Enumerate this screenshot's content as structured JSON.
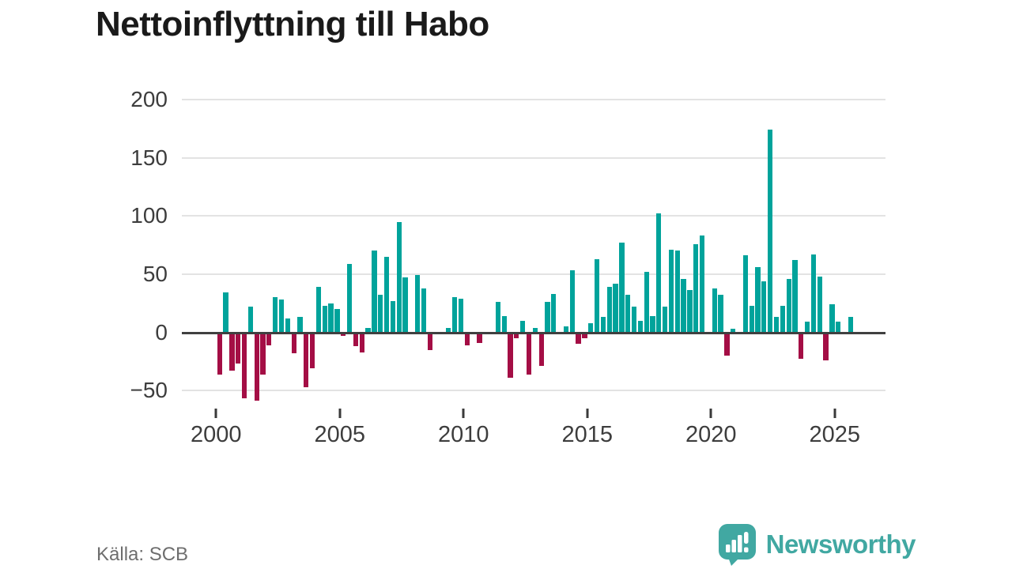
{
  "title": "Nettoinflyttning till Habo",
  "source": "Källa: SCB",
  "branding": {
    "name": "Newsworthy",
    "logo_icon": "speech-bubble-bar-chart"
  },
  "colors": {
    "positive_bar": "#00A39B",
    "negative_bar": "#A40E45",
    "brand_teal": "#41A8A2",
    "axis": "#404040",
    "grid": "#E3E3E3",
    "tick_text": "#3D3D3D",
    "title_text": "#1A1A1A",
    "muted_text": "#6E6E6E"
  },
  "chart_data": {
    "type": "bar",
    "title": "Nettoinflyttning till Habo",
    "xlabel": "",
    "ylabel": "",
    "y_ticks": [
      200,
      150,
      100,
      50,
      0,
      -50
    ],
    "y_tick_labels": [
      "200",
      "150",
      "100",
      "50",
      "0",
      "−50"
    ],
    "ylim": [
      -75,
      210
    ],
    "x_tick_labels": [
      "2000",
      "2005",
      "2010",
      "2015",
      "2020",
      "2025"
    ],
    "grid": true,
    "legend": false,
    "period": "quarterly",
    "start": "2000-Q1",
    "end": "2025-Q3",
    "series": [
      {
        "year": 2000,
        "values": [
          -35,
          34,
          -32,
          -26
        ]
      },
      {
        "year": 2001,
        "values": [
          -56,
          22,
          -58,
          -35
        ]
      },
      {
        "year": 2002,
        "values": [
          -10,
          30,
          28,
          12
        ]
      },
      {
        "year": 2003,
        "values": [
          -17,
          13,
          -46,
          -30
        ]
      },
      {
        "year": 2004,
        "values": [
          39,
          23,
          25,
          20
        ]
      },
      {
        "year": 2005,
        "values": [
          -2,
          59,
          -11,
          -16
        ]
      },
      {
        "year": 2006,
        "values": [
          4,
          70,
          32,
          65
        ]
      },
      {
        "year": 2007,
        "values": [
          27,
          95,
          47,
          0
        ]
      },
      {
        "year": 2008,
        "values": [
          49,
          38,
          -14,
          0
        ]
      },
      {
        "year": 2009,
        "values": [
          0,
          4,
          30,
          29
        ]
      },
      {
        "year": 2010,
        "values": [
          -10,
          0,
          -8,
          0
        ]
      },
      {
        "year": 2011,
        "values": [
          0,
          26,
          14,
          -38
        ]
      },
      {
        "year": 2012,
        "values": [
          -4,
          10,
          -35,
          4
        ]
      },
      {
        "year": 2013,
        "values": [
          -28,
          26,
          33,
          0
        ]
      },
      {
        "year": 2014,
        "values": [
          5,
          53,
          -9,
          -4
        ]
      },
      {
        "year": 2015,
        "values": [
          8,
          63,
          13,
          39
        ]
      },
      {
        "year": 2016,
        "values": [
          42,
          77,
          32,
          22
        ]
      },
      {
        "year": 2017,
        "values": [
          10,
          52,
          14,
          102
        ]
      },
      {
        "year": 2018,
        "values": [
          22,
          71,
          70,
          46
        ]
      },
      {
        "year": 2019,
        "values": [
          36,
          76,
          83,
          0
        ]
      },
      {
        "year": 2020,
        "values": [
          38,
          32,
          -19,
          3
        ]
      },
      {
        "year": 2021,
        "values": [
          0,
          66,
          23,
          56
        ]
      },
      {
        "year": 2022,
        "values": [
          44,
          174,
          13,
          23
        ]
      },
      {
        "year": 2023,
        "values": [
          46,
          62,
          -22,
          9
        ]
      },
      {
        "year": 2024,
        "values": [
          67,
          48,
          -23,
          24
        ]
      },
      {
        "year": 2025,
        "values": [
          9,
          0,
          13
        ]
      }
    ]
  }
}
